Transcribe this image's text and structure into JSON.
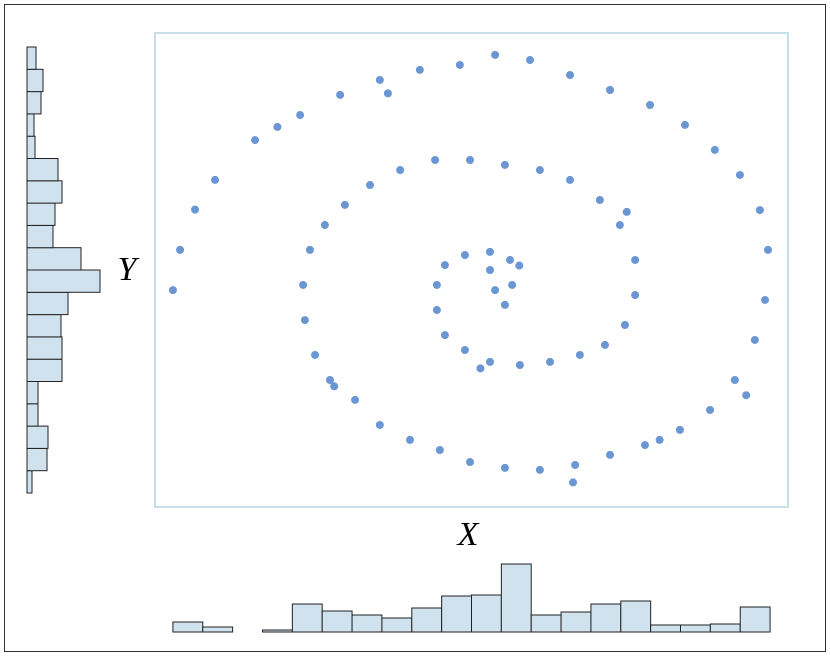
{
  "chart_data": [
    {
      "type": "scatter",
      "x_label": "X",
      "y_label": "Y",
      "color": "#6a97d3",
      "xlim": [
        -10.6,
        10.6
      ],
      "ylim": [
        -10.6,
        10.6
      ],
      "x": [
        -10.0,
        -9.76,
        -9.26,
        -8.59,
        -7.25,
        -5.74,
        -4.4,
        -3.07,
        -1.73,
        -0.39,
        0.79,
        1.96,
        3.3,
        4.64,
        5.98,
        7.15,
        8.15,
        8.99,
        9.66,
        9.93,
        9.83,
        9.49,
        8.82,
        7.99,
        6.98,
        5.81,
        4.64,
        3.47,
        2.29,
        1.12,
        -0.05,
        -1.06,
        -2.06,
        -3.07,
        -3.9,
        -4.74,
        -5.24,
        -5.58,
        -5.64,
        -5.41,
        -4.91,
        -4.24,
        -3.4,
        -2.39,
        -1.22,
        -0.05,
        1.12,
        2.29,
        3.3,
        4.3,
        4.97,
        5.48,
        5.48,
        5.14,
        4.47,
        3.63,
        2.63,
        1.62,
        0.62,
        -0.22,
        -0.89,
        -1.16,
        -1.16,
        -0.89,
        -0.22,
        0.62,
        1.29,
        1.36,
        1.12,
        0.79,
        0.62,
        3.4,
        -6.5,
        9.2,
        -2.8,
        6.3,
        5.2,
        -4.6,
        0.3,
        1.6
      ],
      "y": [
        -0.9,
        0.9,
        2.7,
        4.03,
        5.81,
        6.93,
        7.83,
        8.5,
        8.95,
        9.17,
        9.62,
        9.39,
        8.72,
        8.05,
        7.38,
        6.49,
        5.37,
        4.25,
        2.68,
        0.9,
        -1.34,
        -3.13,
        -4.92,
        -6.26,
        -7.15,
        -7.83,
        -8.27,
        -8.72,
        -8.94,
        -8.85,
        -8.59,
        -8.05,
        -7.6,
        -6.93,
        -5.81,
        -4.92,
        -3.8,
        -2.24,
        -0.67,
        0.9,
        2.01,
        2.91,
        3.8,
        4.47,
        4.92,
        4.92,
        4.7,
        4.47,
        4.03,
        3.13,
        2.01,
        0.45,
        -1.12,
        -2.46,
        -3.35,
        -3.8,
        -4.11,
        -4.25,
        -4.11,
        -3.58,
        -2.91,
        -1.79,
        -0.67,
        0.22,
        0.67,
        0.81,
        0.45,
        -0.67,
        -1.56,
        -0.9,
        0.0,
        -9.5,
        6.4,
        -5.6,
        7.9,
        -7.6,
        2.6,
        -5.2,
        -4.4,
        0.2
      ]
    },
    {
      "type": "histogram",
      "orientation": "vertical",
      "color": "#cfe2ee",
      "bins": [
        -10,
        -9,
        -8,
        -7,
        -6,
        -5,
        -4,
        -3,
        -2,
        -1,
        0,
        1,
        2,
        3,
        4,
        5,
        6,
        7,
        8,
        9,
        10
      ],
      "counts": [
        10,
        5,
        0,
        2,
        28,
        21,
        17,
        14,
        24,
        36,
        37,
        68,
        17,
        20,
        28,
        31,
        7,
        7,
        8,
        25
      ],
      "ylim": [
        0,
        70
      ]
    },
    {
      "type": "histogram",
      "orientation": "horizontal",
      "color": "#cfe2ee",
      "bins": [
        -10,
        -9,
        -8,
        -7,
        -6,
        -5,
        -4,
        -3,
        -2,
        -1,
        0,
        1,
        2,
        3,
        4,
        5,
        6,
        7,
        8,
        9,
        10
      ],
      "counts": [
        5,
        20,
        21,
        11,
        11,
        35,
        35,
        34,
        41,
        73,
        54,
        26,
        28,
        35,
        31,
        8,
        7,
        14,
        16,
        9
      ],
      "xlim": [
        0,
        75
      ]
    }
  ]
}
